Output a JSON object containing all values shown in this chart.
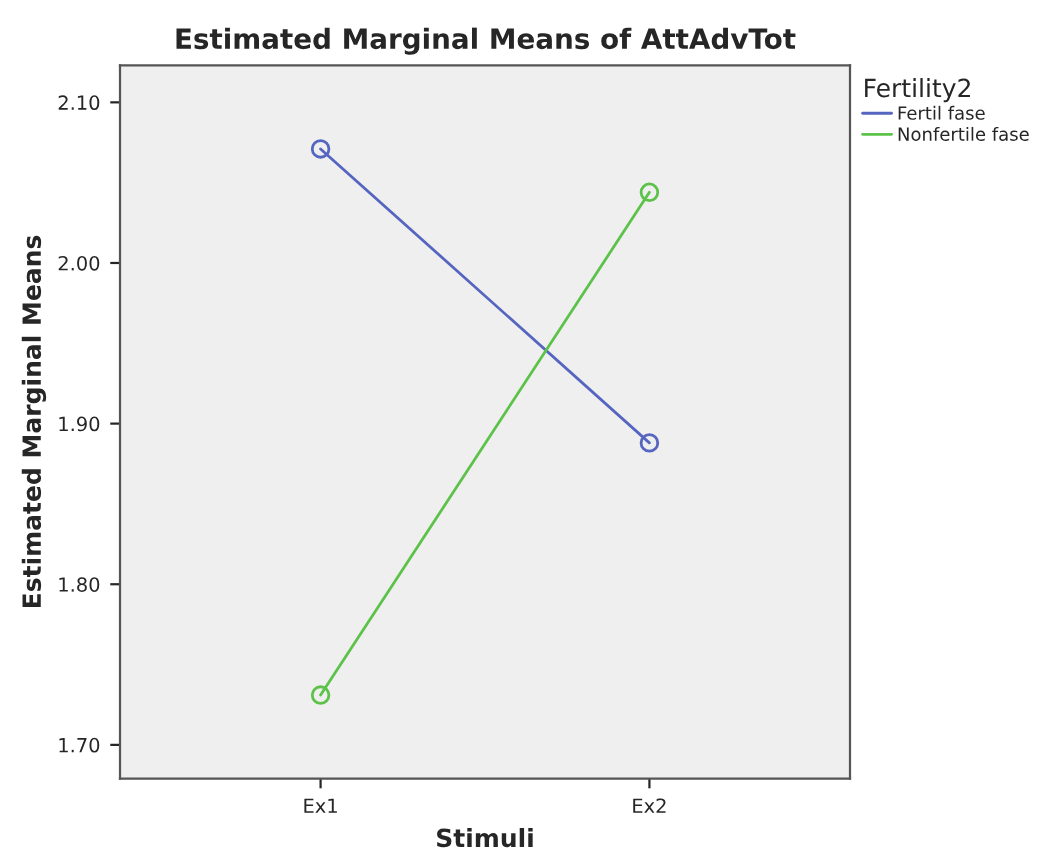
{
  "chart_data": {
    "type": "line",
    "title": "Estimated Marginal Means of AttAdvTot",
    "xlabel": "Stimuli",
    "ylabel": "Estimated Marginal Means",
    "legend_title": "Fertility2",
    "categories": [
      "Ex1",
      "Ex2"
    ],
    "series": [
      {
        "name": "Fertil fase",
        "color": "#5565c0",
        "values": [
          2.071,
          1.888
        ]
      },
      {
        "name": "Nonfertile fase",
        "color": "#5cc24a",
        "values": [
          1.731,
          2.044
        ]
      }
    ],
    "ylim": [
      1.679,
      2.123
    ],
    "yticks": [
      {
        "value": 1.7,
        "label": "1.70"
      },
      {
        "value": 1.8,
        "label": "1.80"
      },
      {
        "value": 1.9,
        "label": "1.90"
      },
      {
        "value": 2.0,
        "label": "2.00"
      },
      {
        "value": 2.1,
        "label": "2.10"
      }
    ],
    "grid": false,
    "legend": "top right",
    "marker": "circle",
    "line_style": "solid"
  }
}
